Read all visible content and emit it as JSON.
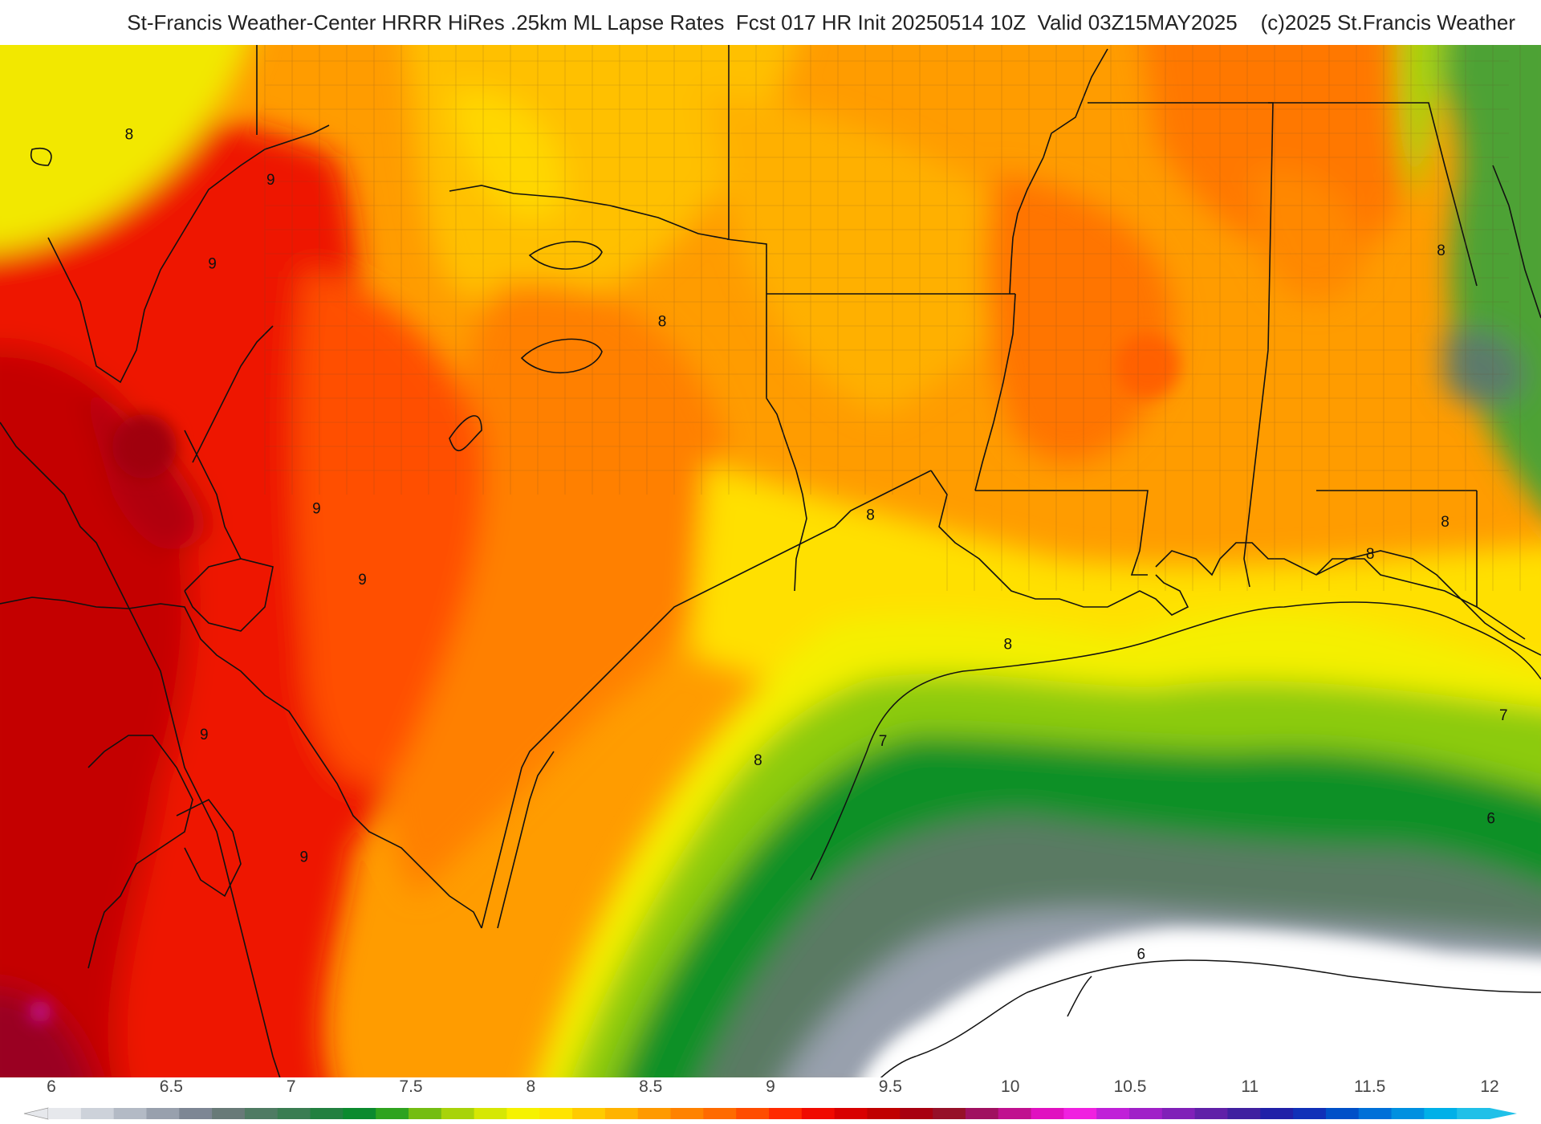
{
  "header": {
    "title": "St-Francis Weather-Center HRRR HiRes .25km ML Lapse Rates  Fcst 017 HR Init 20250514 10Z  Valid 03Z15MAY2025    (c)2025 St.Francis Weather"
  },
  "map": {
    "contour_labels": [
      {
        "text": "8",
        "lon": -111.9,
        "lat": 37.6
      },
      {
        "text": "9",
        "lon": -108.5,
        "lat": 36.9
      },
      {
        "text": "9",
        "lon": -109.9,
        "lat": 35.6
      },
      {
        "text": "8",
        "lon": -99.1,
        "lat": 34.7
      },
      {
        "text": "9",
        "lon": -107.4,
        "lat": 31.8
      },
      {
        "text": "9",
        "lon": -106.3,
        "lat": 30.7
      },
      {
        "text": "9",
        "lon": -110.1,
        "lat": 28.3
      },
      {
        "text": "9",
        "lon": -107.7,
        "lat": 26.4
      },
      {
        "text": "8",
        "lon": -94.1,
        "lat": 31.7
      },
      {
        "text": "8",
        "lon": -90.8,
        "lat": 29.7
      },
      {
        "text": "8",
        "lon": -96.8,
        "lat": 27.9
      },
      {
        "text": "7",
        "lon": -93.8,
        "lat": 28.2
      },
      {
        "text": "7",
        "lon": -78.9,
        "lat": 28.6
      },
      {
        "text": "6",
        "lon": -79.2,
        "lat": 27.0
      },
      {
        "text": "6",
        "lon": -87.6,
        "lat": 24.9
      },
      {
        "text": "8",
        "lon": -80.4,
        "lat": 35.8
      },
      {
        "text": "8",
        "lon": -80.3,
        "lat": 31.6
      },
      {
        "text": "8",
        "lon": -82.1,
        "lat": 31.1
      }
    ]
  },
  "colorbar": {
    "ticks": [
      "6",
      "6.5",
      "7",
      "7.5",
      "8",
      "8.5",
      "9",
      "9.5",
      "10",
      "10.5",
      "11",
      "11.5",
      "12"
    ],
    "colors": [
      "#e6e8ec",
      "#cdd2da",
      "#b3bac5",
      "#98a0ad",
      "#7d8694",
      "#687a78",
      "#4f7b63",
      "#3a7d52",
      "#228040",
      "#0b8a2e",
      "#2ea31f",
      "#74bd12",
      "#a8d30a",
      "#d6e704",
      "#f6f200",
      "#ffe400",
      "#ffcb00",
      "#ffb300",
      "#ff9a00",
      "#ff8200",
      "#ff6a00",
      "#ff4c00",
      "#ff2a00",
      "#f00a00",
      "#d80000",
      "#c00000",
      "#a80010",
      "#961028",
      "#a01060",
      "#c0108f",
      "#e010c0",
      "#f020e0",
      "#c020d8",
      "#a020c8",
      "#8020b8",
      "#6020a8",
      "#4020a0",
      "#2020a8",
      "#1030b8",
      "#0050c8",
      "#0070d8",
      "#0090e0",
      "#00b0e8",
      "#20c0e8"
    ],
    "cap_left": "#e6e8ec",
    "cap_right": "#20c0e8"
  }
}
